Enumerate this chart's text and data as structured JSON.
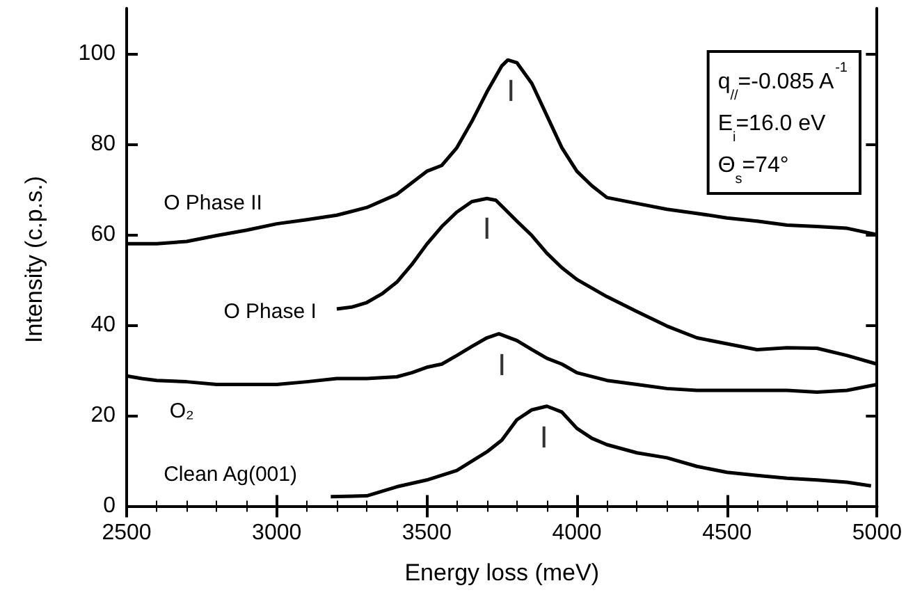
{
  "chart_data": {
    "type": "line",
    "xlabel": "Energy loss (meV)",
    "ylabel": "Intensity (c.p.s.)",
    "xlim": [
      2500,
      5000
    ],
    "xticks": [
      2500,
      3000,
      3500,
      4000,
      4500,
      5000
    ],
    "ylim": [
      -1,
      110
    ],
    "yticks": [
      0,
      20,
      40,
      60,
      80,
      100
    ],
    "grid": false,
    "legend": false,
    "marker": "none",
    "line_style": "solid",
    "annotations": [
      "q$_{//}$=-0.085 A$^{-1}$",
      "E$_{i}$=16.0 eV",
      "Θ$_{s}$=74°",
      {
        "text": "|",
        "x": 3780,
        "y": 98.4
      },
      {
        "text": "|",
        "x": 3700,
        "y": 68
      },
      {
        "text": "|",
        "x": 3750,
        "y": 37.9
      },
      {
        "text": "|",
        "x": 3890,
        "y": 21.9
      }
    ],
    "series": [
      {
        "name": "O Phase II",
        "color": "#000000",
        "x": [
          2500,
          2600,
          2700,
          2800,
          2900,
          3000,
          3100,
          3200,
          3300,
          3400,
          3500,
          3550,
          3600,
          3650,
          3700,
          3750,
          3770,
          3800,
          3850,
          3900,
          3950,
          4000,
          4050,
          4100,
          4200,
          4300,
          4400,
          4500,
          4600,
          4700,
          4800,
          4900,
          5000
        ],
        "values": [
          58,
          58,
          58.5,
          59.8,
          61,
          62.4,
          63.3,
          64.3,
          66,
          68.9,
          74,
          75.3,
          79.2,
          85,
          91.5,
          97.3,
          98.6,
          98,
          93.4,
          86.3,
          79.2,
          74,
          70.8,
          68.2,
          66.9,
          65.6,
          64.7,
          63.7,
          63,
          62.1,
          61.8,
          61.4,
          60
        ]
      },
      {
        "name": "O Phase I",
        "color": "#000000",
        "x": [
          3200,
          3250,
          3300,
          3350,
          3400,
          3450,
          3500,
          3550,
          3600,
          3650,
          3700,
          3730,
          3750,
          3800,
          3850,
          3900,
          3950,
          4000,
          4100,
          4200,
          4300,
          4400,
          4500,
          4600,
          4700,
          4800,
          4900,
          5000
        ],
        "values": [
          43.6,
          44,
          45,
          46.9,
          49.5,
          53.4,
          57.9,
          61.8,
          65,
          67.3,
          68,
          67.6,
          66.3,
          63,
          59.8,
          55.9,
          52.7,
          50.1,
          46.3,
          43,
          39.8,
          37.2,
          35.9,
          34.6,
          35,
          34.9,
          33.3,
          31.4
        ]
      },
      {
        "name": "O₂",
        "color": "#000000",
        "x": [
          2500,
          2550,
          2600,
          2700,
          2800,
          2900,
          3000,
          3100,
          3200,
          3300,
          3400,
          3450,
          3500,
          3550,
          3600,
          3650,
          3700,
          3740,
          3800,
          3850,
          3900,
          3950,
          4000,
          4100,
          4200,
          4300,
          4400,
          4600,
          4700,
          4800,
          4900,
          5000
        ],
        "values": [
          28.8,
          28.2,
          27.8,
          27.5,
          26.9,
          26.9,
          26.9,
          27.5,
          28.2,
          28.2,
          28.6,
          29.5,
          30.7,
          31.4,
          33.3,
          35.3,
          37.2,
          38.1,
          36.6,
          34.6,
          32.7,
          31.4,
          29.5,
          27.8,
          26.9,
          26,
          25.6,
          25.6,
          25.6,
          25.2,
          25.6,
          26.9
        ]
      },
      {
        "name": "Clean Ag(001)",
        "color": "#000000",
        "x": [
          3180,
          3300,
          3400,
          3500,
          3600,
          3700,
          3750,
          3800,
          3850,
          3900,
          3950,
          4000,
          4050,
          4100,
          4200,
          4300,
          4400,
          4500,
          4600,
          4700,
          4800,
          4900,
          4980
        ],
        "values": [
          2.1,
          2.3,
          4.3,
          5.8,
          7.9,
          12,
          14.6,
          19.1,
          21.3,
          22.1,
          20.8,
          17.2,
          15,
          13.6,
          11.8,
          10.7,
          8.8,
          7.5,
          6.8,
          6.2,
          5.8,
          5.3,
          4.5
        ]
      }
    ]
  }
}
